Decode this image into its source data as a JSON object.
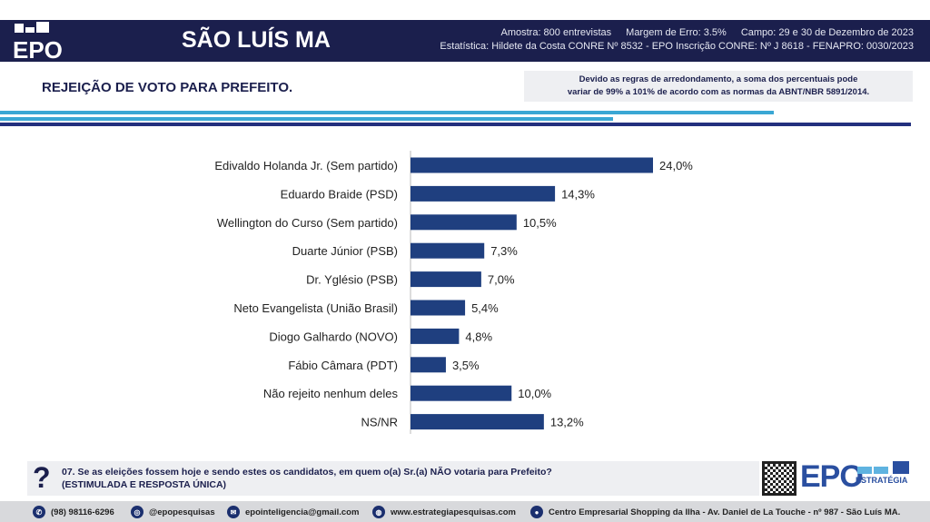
{
  "header": {
    "logo": "EPO",
    "city": "SÃO LUÍS MA",
    "sample": "Amostra: 800 entrevistas",
    "margin": "Margem de Erro: 3.5%",
    "field": "Campo: 29 e 30 de Dezembro de 2023",
    "stats": "Estatística: Hildete da Costa CONRE Nº 8532  - EPO Inscrição CONRE: Nº J 8618 - FENAPRO: 0030/2023"
  },
  "title": "REJEIÇÃO DE VOTO PARA PREFEITO.",
  "note": {
    "line1": "Devido as regras de arredondamento, a soma dos percentuais pode",
    "line2": "variar de 99% a 101% de acordo com as normas da ABNT/NBR 5891/2014."
  },
  "chart_data": {
    "type": "bar",
    "orientation": "horizontal",
    "categories": [
      "Edivaldo Holanda Jr.  (Sem partido)",
      "Eduardo Braide (PSD)",
      "Wellington do Curso (Sem partido)",
      "Duarte Júnior (PSB)",
      "Dr. Yglésio (PSB)",
      "Neto Evangelista (União Brasil)",
      "Diogo Galhardo (NOVO)",
      "Fábio Câmara (PDT)",
      "Não rejeito nenhum deles",
      "NS/NR"
    ],
    "values": [
      24.0,
      14.3,
      10.5,
      7.3,
      7.0,
      5.4,
      4.8,
      3.5,
      10.0,
      13.2
    ],
    "labels": [
      "24,0%",
      "14,3%",
      "10,5%",
      "7,3%",
      "7,0%",
      "5,4%",
      "4,8%",
      "3,5%",
      "10,0%",
      "13,2%"
    ],
    "bar_color": "#1f3f7f",
    "grid": false
  },
  "question": {
    "mark": "?",
    "line1": "07. Se as eleições fossem hoje e sendo estes os candidatos, em quem o(a) Sr.(a) NÃO votaria para Prefeito?",
    "line2": "(ESTIMULADA E RESPOSTA ÚNICA)"
  },
  "brand": {
    "logo": "EPO",
    "sub": "ESTRATÉGIA"
  },
  "footer": {
    "phone": "(98) 98116-6296",
    "instagram": "@epopesquisas",
    "email": "epointeligencia@gmail.com",
    "site": "www.estrategiapesquisas.com",
    "address": "Centro Empresarial Shopping da Ilha - Av. Daniel de La Touche - nº 987 - São Luís MA."
  }
}
